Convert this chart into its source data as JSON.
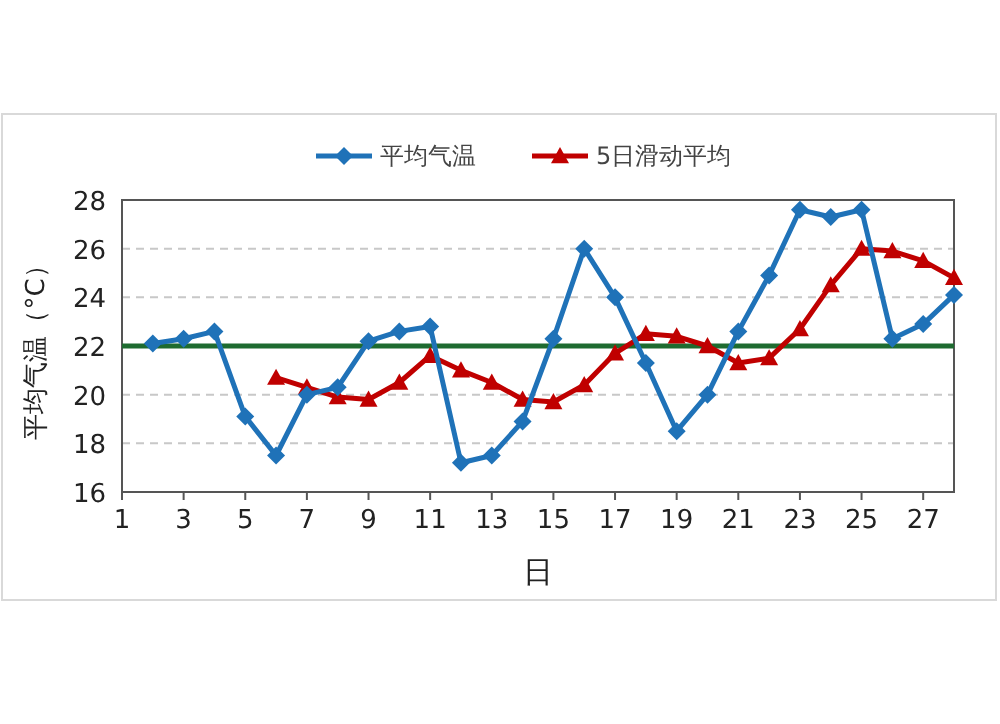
{
  "chart_data": {
    "type": "line",
    "xlabel": "日",
    "ylabel": "平均气温（°C）",
    "xlim": [
      1,
      28
    ],
    "ylim": [
      16,
      28
    ],
    "xticks": [
      1,
      3,
      5,
      7,
      9,
      11,
      13,
      15,
      17,
      19,
      21,
      23,
      25,
      27
    ],
    "yticks": [
      16,
      18,
      20,
      22,
      24,
      26,
      28
    ],
    "grid": "y",
    "legend": "top",
    "series": [
      {
        "name": "平均气温",
        "color": "#1f72b8",
        "marker": "diamond",
        "x": [
          2,
          3,
          4,
          5,
          6,
          7,
          8,
          9,
          10,
          11,
          12,
          13,
          14,
          15,
          16,
          17,
          18,
          19,
          20,
          21,
          22,
          23,
          24,
          25,
          26,
          27,
          28
        ],
        "values": [
          22.1,
          22.3,
          22.6,
          19.1,
          17.5,
          20.0,
          20.3,
          22.2,
          22.6,
          22.8,
          17.2,
          17.5,
          18.9,
          22.3,
          26.0,
          24.0,
          21.3,
          18.5,
          20.0,
          22.6,
          24.9,
          27.6,
          27.3,
          27.6,
          22.3,
          22.9,
          24.1
        ]
      },
      {
        "name": "5日滑动平均",
        "color": "#c00000",
        "marker": "triangle",
        "x": [
          6,
          7,
          8,
          9,
          10,
          11,
          12,
          13,
          14,
          15,
          16,
          17,
          18,
          19,
          20,
          21,
          22,
          23,
          24,
          25,
          26,
          27,
          28
        ],
        "values": [
          20.7,
          20.3,
          19.9,
          19.8,
          20.5,
          21.6,
          21.0,
          20.5,
          19.8,
          19.7,
          20.4,
          21.7,
          22.5,
          22.4,
          22.0,
          21.3,
          21.5,
          22.7,
          24.5,
          26.0,
          25.9,
          25.5,
          24.8
        ]
      }
    ],
    "ref_lines": [
      {
        "axis": "y",
        "value": 22,
        "color": "#1e6b30"
      }
    ]
  }
}
